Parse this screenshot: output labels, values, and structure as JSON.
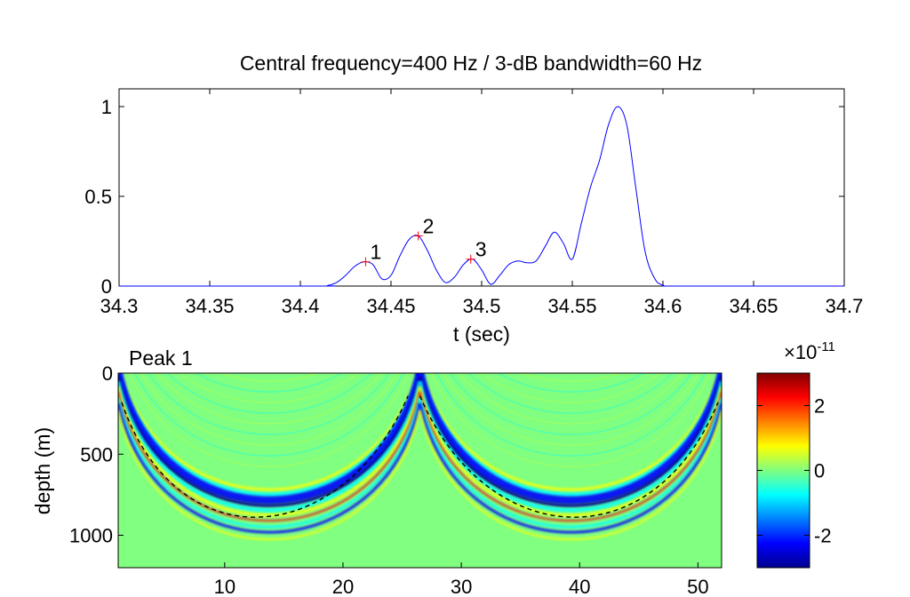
{
  "chart_data": [
    {
      "type": "line",
      "title": "Central frequency=400 Hz   /  3-dB bandwidth=60 Hz",
      "xlabel": "t (sec)",
      "ylabel": "",
      "xlim": [
        34.3,
        34.7
      ],
      "ylim": [
        0,
        1.0
      ],
      "xticks": [
        "34.3",
        "34.35",
        "34.4",
        "34.45",
        "34.5",
        "34.55",
        "34.6",
        "34.65",
        "34.7"
      ],
      "yticks": [
        "0",
        "0.5",
        "1"
      ],
      "line_color": "#0000ff",
      "marker_color": "#ff0000",
      "series": [
        {
          "x": [
            34.3,
            34.41,
            34.415,
            34.42,
            34.425,
            34.43,
            34.435,
            34.44,
            34.445,
            34.45,
            34.455,
            34.46,
            34.465,
            34.47,
            34.475,
            34.48,
            34.485,
            34.49,
            34.495,
            34.5,
            34.505,
            34.51,
            34.515,
            34.52,
            34.525,
            34.53,
            34.535,
            34.54,
            34.545,
            34.55,
            34.555,
            34.56,
            34.565,
            34.57,
            34.575,
            34.58,
            34.585,
            34.59,
            34.595,
            34.6,
            34.61,
            34.7
          ],
          "values": [
            0,
            0,
            0.003,
            0.02,
            0.06,
            0.11,
            0.135,
            0.12,
            0.04,
            0.06,
            0.17,
            0.26,
            0.28,
            0.2,
            0.09,
            0.02,
            0.05,
            0.12,
            0.15,
            0.09,
            0.01,
            0.06,
            0.12,
            0.14,
            0.13,
            0.14,
            0.22,
            0.3,
            0.24,
            0.15,
            0.35,
            0.55,
            0.7,
            0.9,
            1.0,
            0.9,
            0.55,
            0.2,
            0.05,
            0.005,
            0,
            0
          ]
        }
      ],
      "annotations": [
        {
          "text": "1",
          "x": 34.436,
          "y": 0.135
        },
        {
          "text": "2",
          "x": 34.465,
          "y": 0.28
        },
        {
          "text": "3",
          "x": 34.494,
          "y": 0.15
        }
      ]
    },
    {
      "type": "heatmap",
      "title": "Peak 1",
      "xlabel": "",
      "ylabel": "depth (m)",
      "xlim": [
        1,
        52
      ],
      "ylim": [
        0,
        1200
      ],
      "xticks": [
        "10",
        "20",
        "30",
        "40",
        "50"
      ],
      "yticks": [
        "0",
        "500",
        "1000"
      ],
      "colorscale": "jet",
      "clim": [
        -3e-11,
        3e-11
      ],
      "colorbar_ticks": [
        "2",
        "0",
        "-2"
      ],
      "colorbar_exponent_base": "×10",
      "colorbar_exponent": "-11",
      "background_color": "#80ff80",
      "dashed_curve_color": "#000000"
    }
  ]
}
